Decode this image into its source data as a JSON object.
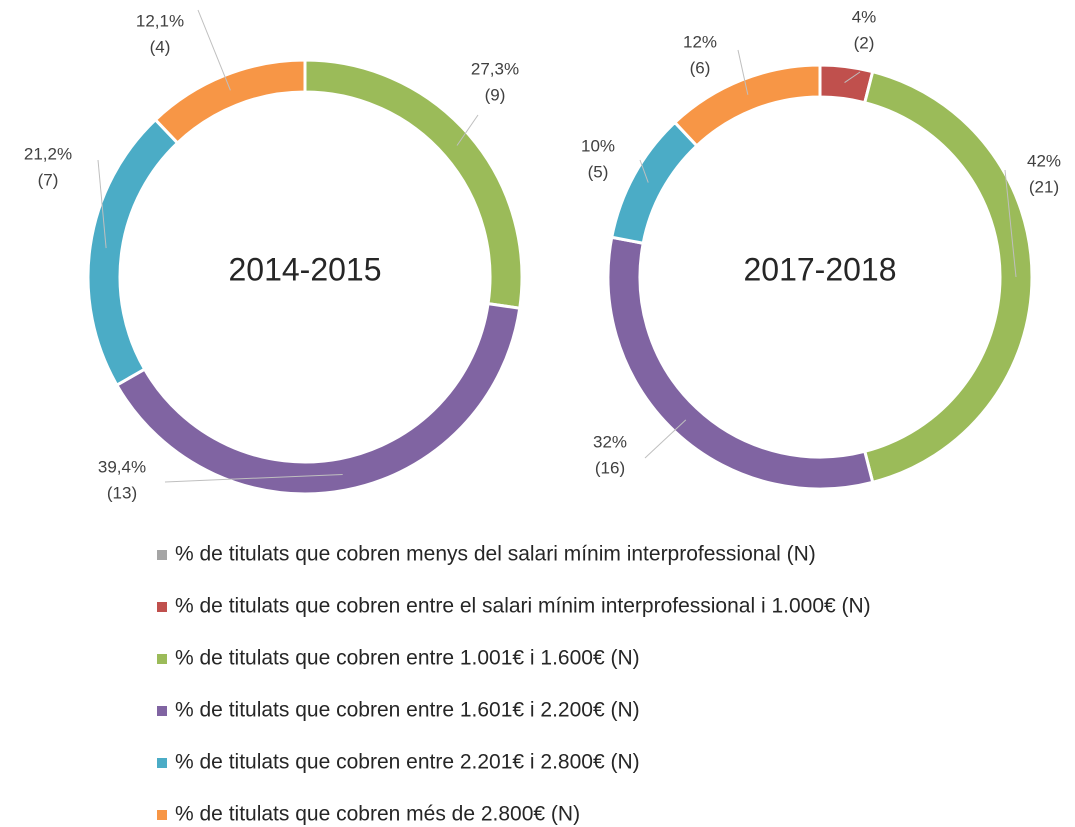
{
  "chart_data": [
    {
      "type": "donut",
      "title": "2014-2015",
      "categories": [
        "% de titulats que cobren entre 1.001€ i 1.600€ (N)",
        "% de titulats que cobren entre 1.601€ i 2.200€ (N)",
        "% de titulats que cobren entre 2.201€ i 2.800€ (N)",
        "% de titulats que cobren més de 2.800€ (N)"
      ],
      "values": [
        27.3,
        39.4,
        21.2,
        12.1
      ],
      "value_labels": [
        "27,3%",
        "39,4%",
        "21,2%",
        "12,1%"
      ],
      "counts": [
        9,
        13,
        7,
        4
      ],
      "count_labels": [
        "(9)",
        "(13)",
        "(7)",
        "(4)"
      ]
    },
    {
      "type": "donut",
      "title": "2017-2018",
      "categories": [
        "% de titulats que cobren entre el salari mínim interprofessional i 1.000€ (N)",
        "% de titulats que cobren entre 1.001€ i 1.600€ (N)",
        "% de titulats que cobren entre 1.601€ i 2.200€ (N)",
        "% de titulats que cobren entre 2.201€ i 2.800€ (N)",
        "% de titulats que cobren més de 2.800€ (N)"
      ],
      "values": [
        4,
        42,
        32,
        10,
        12
      ],
      "value_labels": [
        "4%",
        "42%",
        "32%",
        "10%",
        "12%"
      ],
      "counts": [
        2,
        21,
        16,
        5,
        6
      ],
      "count_labels": [
        "(2)",
        "(21)",
        "(16)",
        "(5)",
        "(6)"
      ]
    }
  ],
  "legend": {
    "names": [
      "% de titulats que cobren menys del salari mínim interprofessional (N)",
      "% de titulats que cobren entre el salari mínim interprofessional i 1.000€ (N)",
      "% de titulats que cobren entre 1.001€ i 1.600€ (N)",
      "% de titulats que cobren entre 1.601€ i 2.200€ (N)",
      "% de titulats que cobren entre 2.201€ i 2.800€ (N)",
      "% de titulats que cobren més de 2.800€ (N)"
    ],
    "colors": [
      "#a5a5a5",
      "#c0504d",
      "#9bbb59",
      "#8064a2",
      "#4bacc6",
      "#f79646"
    ]
  }
}
